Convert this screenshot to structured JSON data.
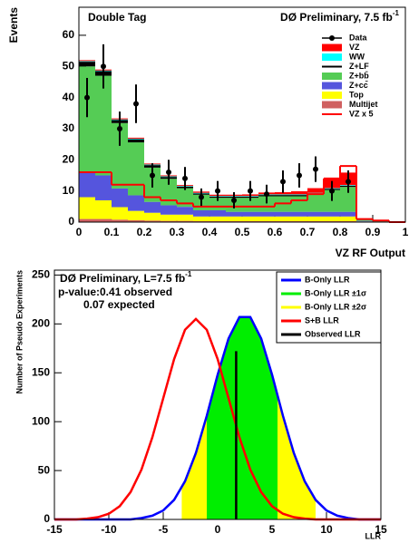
{
  "chart_data": [
    {
      "type": "histogram",
      "title": "Double Tag",
      "subtitle": "DØ Preliminary, 7.5 fb",
      "subtitle_sup": "-1",
      "x_label": "VZ RF Output",
      "y_label": "Events",
      "bins": [
        0,
        0.05,
        0.1,
        0.15,
        0.2,
        0.25,
        0.3,
        0.35,
        0.4,
        0.45,
        0.5,
        0.55,
        0.6,
        0.65,
        0.7,
        0.75,
        0.8,
        0.85,
        0.9,
        0.95,
        1
      ],
      "xlim": [
        0,
        1
      ],
      "xticks": [
        0,
        0.1,
        0.2,
        0.3,
        0.4,
        0.5,
        0.6,
        0.7,
        0.8,
        0.9,
        1
      ],
      "ylim": [
        0,
        69
      ],
      "yticks": [
        0,
        10,
        20,
        30,
        40,
        50,
        60
      ],
      "data": {
        "name": "Data",
        "color": "#000000",
        "values": [
          40,
          50,
          30,
          38,
          15,
          16,
          14,
          8,
          10,
          7,
          10,
          9,
          13,
          15,
          17,
          10,
          13,
          null,
          null,
          null
        ],
        "errors": [
          6.3,
          7.1,
          5.5,
          6.2,
          3.9,
          4,
          3.7,
          2.8,
          3.2,
          2.6,
          3.2,
          3,
          3.6,
          3.9,
          4.1,
          3.2,
          3.6,
          null,
          null,
          null
        ]
      },
      "series": [
        {
          "name": "VZ",
          "color": "#ff0000",
          "values": [
            0.3,
            0.3,
            0.3,
            0.3,
            0.3,
            0.3,
            0.3,
            0.4,
            0.4,
            0.4,
            0.5,
            0.6,
            0.7,
            1,
            1.5,
            3,
            4,
            0.1,
            0.1,
            0
          ]
        },
        {
          "name": "WW",
          "color": "#00ffff",
          "values": [
            0.2,
            0.2,
            0.2,
            0.2,
            0.2,
            0.2,
            0.2,
            0.2,
            0.2,
            0.2,
            0.2,
            0.2,
            0.2,
            0.2,
            0.2,
            0.2,
            0.2,
            0,
            0,
            0
          ]
        },
        {
          "name": "Z+LF",
          "color": "#000000",
          "values": [
            1.5,
            1.5,
            1,
            1,
            0.8,
            0.6,
            0.5,
            0.4,
            0.4,
            0.4,
            0.4,
            0.4,
            0.4,
            0.4,
            0.4,
            0.4,
            0.4,
            0.1,
            0,
            0
          ]
        },
        {
          "name": "Z+bb̄",
          "color": "#55cc55",
          "values": [
            34,
            32,
            21,
            17,
            11,
            8.5,
            6,
            5,
            4,
            4.5,
            4.5,
            5,
            5,
            5,
            5.5,
            7,
            8,
            0.3,
            0.2,
            0.1
          ]
        },
        {
          "name": "Z+cc̄",
          "color": "#5555dd",
          "values": [
            8,
            8,
            6,
            5,
            3.5,
            3,
            2.5,
            2,
            2,
            1.5,
            1.5,
            1.5,
            1.5,
            1.5,
            1.5,
            1.5,
            1.5,
            0.2,
            0.1,
            0.1
          ]
        },
        {
          "name": "Top",
          "color": "#ffff00",
          "values": [
            7,
            6,
            4,
            3,
            2.5,
            2,
            2,
            1.5,
            1.5,
            1.5,
            1.5,
            1.5,
            1.5,
            1.5,
            1.5,
            1.5,
            1.5,
            0.2,
            0.1,
            0
          ]
        },
        {
          "name": "Multijet",
          "color": "#d06060",
          "values": [
            1,
            1,
            0.8,
            0.6,
            0.5,
            0.4,
            0.4,
            0.3,
            0.3,
            0.3,
            0.3,
            0.3,
            0.3,
            0.3,
            0.3,
            0.3,
            0.3,
            0,
            0,
            0
          ]
        }
      ],
      "signal": {
        "name": "VZ x 5",
        "color": "#ff0000",
        "values": [
          16,
          16,
          12,
          12,
          8,
          7,
          6,
          5,
          5,
          5,
          5,
          5,
          6,
          7,
          9,
          14,
          18,
          1,
          0.5,
          0
        ]
      }
    },
    {
      "type": "line",
      "title": "DØ Preliminary, L=7.5 fb",
      "title_sup": "-1",
      "annotations": [
        "p-value:0.41 observed",
        "0.07 expected"
      ],
      "x_label": "LLR",
      "y_label": "Number of Pseudo Experiments",
      "xlim": [
        -15,
        15
      ],
      "xticks": [
        -15,
        -10,
        -5,
        0,
        5,
        10,
        15
      ],
      "ylim": [
        0,
        255
      ],
      "yticks": [
        0,
        50,
        100,
        150,
        200,
        250
      ],
      "x": [
        -15,
        -14,
        -13,
        -12,
        -11,
        -10,
        -9,
        -8,
        -7,
        -6,
        -5,
        -4,
        -3,
        -2,
        -1,
        0,
        1,
        2,
        3,
        4,
        5,
        6,
        7,
        8,
        9,
        10,
        11,
        12,
        13,
        14,
        15
      ],
      "series": [
        {
          "name": "B-Only LLR",
          "color": "#0000ff",
          "values": [
            0,
            0,
            0,
            0,
            0,
            0,
            0,
            0,
            1.4,
            3.8,
            9.2,
            20,
            39,
            68,
            106,
            148,
            185,
            207,
            207,
            185,
            148,
            106,
            68,
            39,
            20,
            9.2,
            3.8,
            1.4,
            0,
            0,
            0
          ]
        },
        {
          "name": "S+B LLR",
          "color": "#ff0000",
          "values": [
            0,
            0,
            0,
            0.8,
            2.3,
            5.8,
            13.5,
            28,
            51,
            84,
            124,
            164,
            194,
            205,
            194,
            164,
            124,
            84,
            51,
            28,
            13.5,
            5.8,
            2.3,
            0.8,
            0,
            0,
            0,
            0,
            0,
            0,
            0
          ]
        }
      ],
      "bands": [
        {
          "name": "B-Only LLR ±1σ",
          "color": "#00ee00",
          "range": [
            -1,
            5.5
          ]
        },
        {
          "name": "B-Only LLR ±2σ",
          "color": "#ffff00",
          "range": [
            -3.3,
            9
          ]
        }
      ],
      "observed": {
        "name": "Observed LLR",
        "color": "#000000",
        "value": 1.7
      }
    }
  ]
}
